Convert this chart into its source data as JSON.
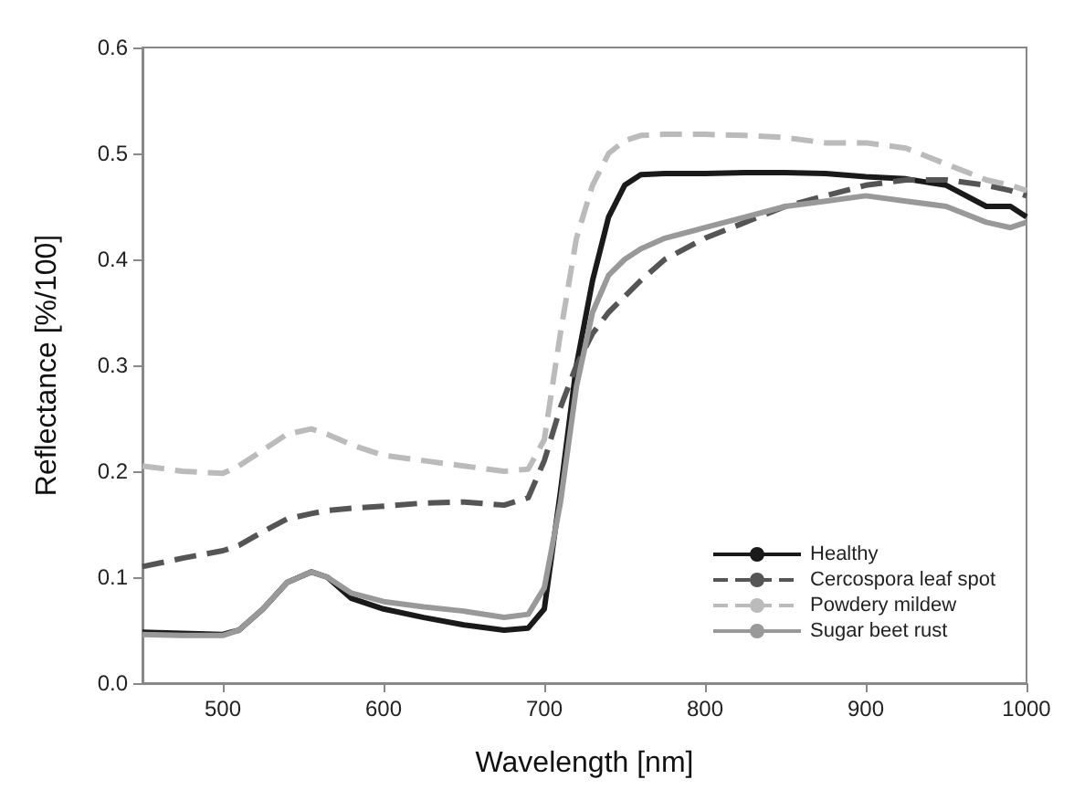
{
  "chart_data": {
    "type": "line",
    "xlabel": "Wavelength [nm]",
    "ylabel": "Reflectance [%/100]",
    "x": [
      450,
      475,
      500,
      510,
      525,
      540,
      555,
      565,
      580,
      600,
      625,
      650,
      675,
      690,
      700,
      710,
      720,
      730,
      740,
      750,
      760,
      775,
      800,
      825,
      850,
      875,
      900,
      925,
      950,
      975,
      990,
      1000
    ],
    "series": [
      {
        "name": "Healthy",
        "color": "#1a1a1a",
        "line_style": "solid",
        "values": [
          0.048,
          0.047,
          0.046,
          0.05,
          0.07,
          0.095,
          0.105,
          0.1,
          0.08,
          0.07,
          0.062,
          0.055,
          0.05,
          0.052,
          0.07,
          0.18,
          0.3,
          0.38,
          0.44,
          0.47,
          0.48,
          0.481,
          0.481,
          0.482,
          0.482,
          0.481,
          0.478,
          0.476,
          0.47,
          0.45,
          0.45,
          0.44
        ]
      },
      {
        "name": "Cercospora leaf spot",
        "color": "#555555",
        "line_style": "dashed",
        "values": [
          0.11,
          0.118,
          0.125,
          0.13,
          0.143,
          0.155,
          0.16,
          0.163,
          0.165,
          0.167,
          0.17,
          0.171,
          0.168,
          0.175,
          0.21,
          0.26,
          0.3,
          0.33,
          0.35,
          0.365,
          0.38,
          0.4,
          0.42,
          0.435,
          0.45,
          0.46,
          0.47,
          0.475,
          0.475,
          0.47,
          0.465,
          0.46
        ]
      },
      {
        "name": "Powdery mildew",
        "color": "#bbbbbb",
        "line_style": "dashed",
        "values": [
          0.205,
          0.2,
          0.198,
          0.205,
          0.22,
          0.235,
          0.24,
          0.235,
          0.225,
          0.215,
          0.21,
          0.205,
          0.2,
          0.202,
          0.23,
          0.33,
          0.42,
          0.47,
          0.5,
          0.512,
          0.517,
          0.518,
          0.518,
          0.517,
          0.515,
          0.51,
          0.51,
          0.505,
          0.49,
          0.475,
          0.47,
          0.465
        ]
      },
      {
        "name": "Sugar beet rust",
        "color": "#999999",
        "line_style": "solid",
        "values": [
          0.046,
          0.045,
          0.045,
          0.05,
          0.07,
          0.095,
          0.105,
          0.1,
          0.085,
          0.077,
          0.072,
          0.068,
          0.062,
          0.065,
          0.09,
          0.17,
          0.28,
          0.35,
          0.385,
          0.4,
          0.41,
          0.42,
          0.43,
          0.44,
          0.45,
          0.455,
          0.46,
          0.455,
          0.45,
          0.435,
          0.43,
          0.435
        ]
      }
    ],
    "xlim": [
      450,
      1000
    ],
    "xticks": [
      500,
      600,
      700,
      800,
      900,
      1000
    ],
    "ylim": [
      0,
      0.6
    ],
    "yticks": [
      {
        "value": 0,
        "label": "0.0"
      },
      0.1,
      0.2,
      0.3,
      0.4,
      0.5,
      0.6
    ],
    "grid": false,
    "legend": "bottom right",
    "marker": "none"
  }
}
